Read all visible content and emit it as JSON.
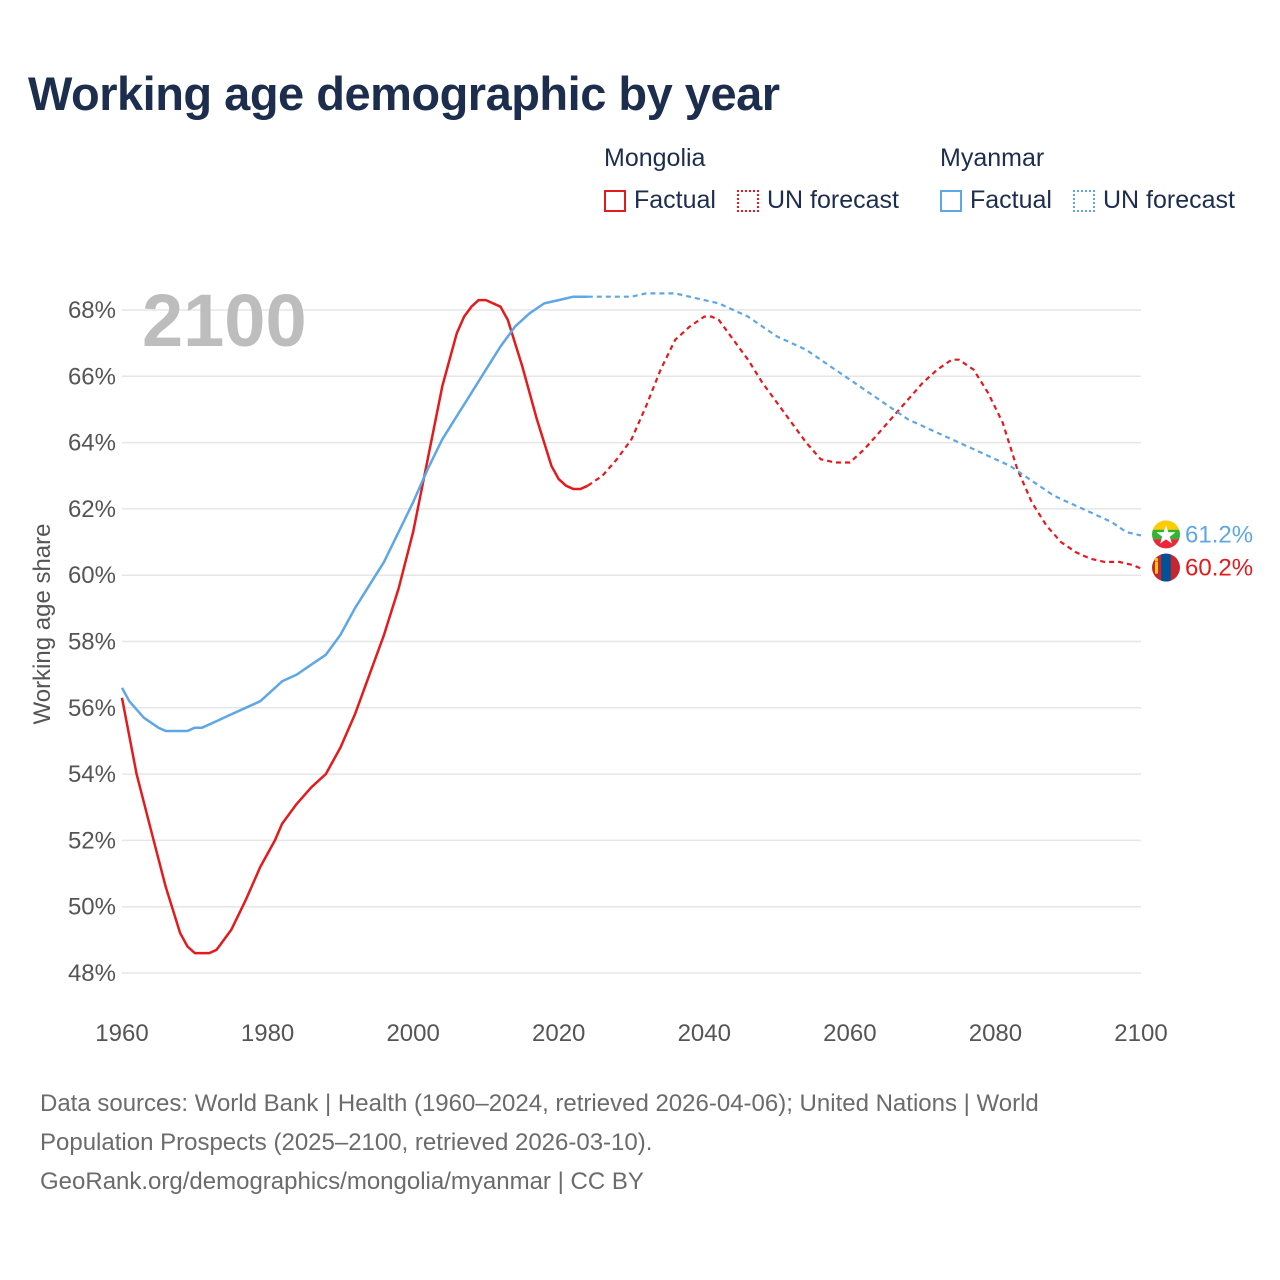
{
  "title": "Working age demographic by year",
  "year_label": "2100",
  "legend": {
    "groups": [
      {
        "name": "Mongolia",
        "factual": "Factual",
        "forecast": "UN forecast",
        "color": "#e41a1c"
      },
      {
        "name": "Myanmar",
        "factual": "Factual",
        "forecast": "UN forecast",
        "color": "#5ea7e6"
      }
    ]
  },
  "footer": {
    "line1": "Data sources: World Bank | Health (1960–2024, retrieved 2026-04-06); United Nations | World",
    "line2": "Population Prospects (2025–2100, retrieved 2026-03-10).",
    "line3": "GeoRank.org/demographics/mongolia/myanmar | CC BY"
  },
  "chart_data": {
    "type": "line",
    "title": "Working age demographic by year",
    "xlabel": "",
    "ylabel": "Working age share",
    "xlim": [
      1960,
      2100
    ],
    "ylim": [
      48,
      68
    ],
    "x_ticks": [
      1960,
      1980,
      2000,
      2020,
      2040,
      2060,
      2080,
      2100
    ],
    "x_tick_labels": [
      "1960",
      "1980",
      "2000",
      "2020",
      "2040",
      "2060",
      "2080",
      "2100"
    ],
    "y_ticks": [
      48,
      50,
      52,
      54,
      56,
      58,
      60,
      62,
      64,
      66,
      68
    ],
    "y_tick_labels": [
      "48%",
      "50%",
      "52%",
      "54%",
      "56%",
      "58%",
      "60%",
      "62%",
      "64%",
      "66%",
      "68%"
    ],
    "factual_end_year": 2024,
    "series": [
      {
        "name": "Mongolia",
        "color": "#e41a1c",
        "end_label": "60.2%",
        "points": [
          [
            1960,
            56.3
          ],
          [
            1962,
            54.0
          ],
          [
            1964,
            52.3
          ],
          [
            1966,
            50.6
          ],
          [
            1968,
            49.2
          ],
          [
            1969,
            48.8
          ],
          [
            1970,
            48.6
          ],
          [
            1972,
            48.6
          ],
          [
            1973,
            48.7
          ],
          [
            1975,
            49.3
          ],
          [
            1977,
            50.2
          ],
          [
            1979,
            51.2
          ],
          [
            1981,
            52.0
          ],
          [
            1982,
            52.5
          ],
          [
            1984,
            53.1
          ],
          [
            1986,
            53.6
          ],
          [
            1988,
            54.0
          ],
          [
            1990,
            54.8
          ],
          [
            1992,
            55.8
          ],
          [
            1994,
            57.0
          ],
          [
            1996,
            58.2
          ],
          [
            1998,
            59.6
          ],
          [
            2000,
            61.3
          ],
          [
            2002,
            63.5
          ],
          [
            2004,
            65.7
          ],
          [
            2006,
            67.3
          ],
          [
            2007,
            67.8
          ],
          [
            2008,
            68.1
          ],
          [
            2009,
            68.3
          ],
          [
            2010,
            68.3
          ],
          [
            2012,
            68.1
          ],
          [
            2013,
            67.7
          ],
          [
            2015,
            66.3
          ],
          [
            2017,
            64.7
          ],
          [
            2019,
            63.3
          ],
          [
            2020,
            62.9
          ],
          [
            2021,
            62.7
          ],
          [
            2022,
            62.6
          ],
          [
            2023,
            62.6
          ],
          [
            2024,
            62.7
          ],
          [
            2026,
            63.0
          ],
          [
            2028,
            63.5
          ],
          [
            2030,
            64.1
          ],
          [
            2032,
            65.1
          ],
          [
            2034,
            66.2
          ],
          [
            2036,
            67.1
          ],
          [
            2038,
            67.5
          ],
          [
            2040,
            67.8
          ],
          [
            2041,
            67.8
          ],
          [
            2042,
            67.7
          ],
          [
            2044,
            67.1
          ],
          [
            2046,
            66.5
          ],
          [
            2048,
            65.8
          ],
          [
            2050,
            65.2
          ],
          [
            2052,
            64.6
          ],
          [
            2054,
            64.0
          ],
          [
            2056,
            63.5
          ],
          [
            2058,
            63.4
          ],
          [
            2060,
            63.4
          ],
          [
            2062,
            63.8
          ],
          [
            2064,
            64.3
          ],
          [
            2066,
            64.8
          ],
          [
            2068,
            65.3
          ],
          [
            2070,
            65.8
          ],
          [
            2072,
            66.2
          ],
          [
            2074,
            66.5
          ],
          [
            2075,
            66.5
          ],
          [
            2077,
            66.2
          ],
          [
            2079,
            65.5
          ],
          [
            2081,
            64.6
          ],
          [
            2083,
            63.2
          ],
          [
            2085,
            62.2
          ],
          [
            2087,
            61.5
          ],
          [
            2089,
            61.0
          ],
          [
            2091,
            60.7
          ],
          [
            2093,
            60.5
          ],
          [
            2095,
            60.4
          ],
          [
            2097,
            60.4
          ],
          [
            2099,
            60.3
          ],
          [
            2100,
            60.2
          ]
        ]
      },
      {
        "name": "Myanmar",
        "color": "#5ea7e6",
        "end_label": "61.2%",
        "points": [
          [
            1960,
            56.6
          ],
          [
            1961,
            56.2
          ],
          [
            1963,
            55.7
          ],
          [
            1965,
            55.4
          ],
          [
            1966,
            55.3
          ],
          [
            1968,
            55.3
          ],
          [
            1969,
            55.3
          ],
          [
            1970,
            55.4
          ],
          [
            1971,
            55.4
          ],
          [
            1973,
            55.6
          ],
          [
            1975,
            55.8
          ],
          [
            1977,
            56.0
          ],
          [
            1979,
            56.2
          ],
          [
            1981,
            56.6
          ],
          [
            1982,
            56.8
          ],
          [
            1984,
            57.0
          ],
          [
            1986,
            57.3
          ],
          [
            1988,
            57.6
          ],
          [
            1990,
            58.2
          ],
          [
            1992,
            59.0
          ],
          [
            1994,
            59.7
          ],
          [
            1996,
            60.4
          ],
          [
            1998,
            61.3
          ],
          [
            2000,
            62.2
          ],
          [
            2002,
            63.2
          ],
          [
            2004,
            64.1
          ],
          [
            2006,
            64.8
          ],
          [
            2008,
            65.5
          ],
          [
            2010,
            66.2
          ],
          [
            2012,
            66.9
          ],
          [
            2014,
            67.5
          ],
          [
            2016,
            67.9
          ],
          [
            2018,
            68.2
          ],
          [
            2020,
            68.3
          ],
          [
            2022,
            68.4
          ],
          [
            2024,
            68.4
          ],
          [
            2026,
            68.4
          ],
          [
            2028,
            68.4
          ],
          [
            2030,
            68.4
          ],
          [
            2032,
            68.5
          ],
          [
            2034,
            68.5
          ],
          [
            2036,
            68.5
          ],
          [
            2038,
            68.4
          ],
          [
            2040,
            68.3
          ],
          [
            2042,
            68.2
          ],
          [
            2044,
            68.0
          ],
          [
            2046,
            67.8
          ],
          [
            2048,
            67.5
          ],
          [
            2050,
            67.2
          ],
          [
            2052,
            67.0
          ],
          [
            2054,
            66.8
          ],
          [
            2056,
            66.5
          ],
          [
            2058,
            66.2
          ],
          [
            2060,
            65.9
          ],
          [
            2062,
            65.6
          ],
          [
            2064,
            65.3
          ],
          [
            2066,
            65.0
          ],
          [
            2068,
            64.7
          ],
          [
            2070,
            64.5
          ],
          [
            2072,
            64.3
          ],
          [
            2074,
            64.1
          ],
          [
            2076,
            63.9
          ],
          [
            2078,
            63.7
          ],
          [
            2080,
            63.5
          ],
          [
            2082,
            63.3
          ],
          [
            2084,
            63.0
          ],
          [
            2086,
            62.7
          ],
          [
            2088,
            62.4
          ],
          [
            2090,
            62.2
          ],
          [
            2092,
            62.0
          ],
          [
            2094,
            61.8
          ],
          [
            2096,
            61.6
          ],
          [
            2098,
            61.3
          ],
          [
            2100,
            61.2
          ]
        ]
      }
    ]
  }
}
